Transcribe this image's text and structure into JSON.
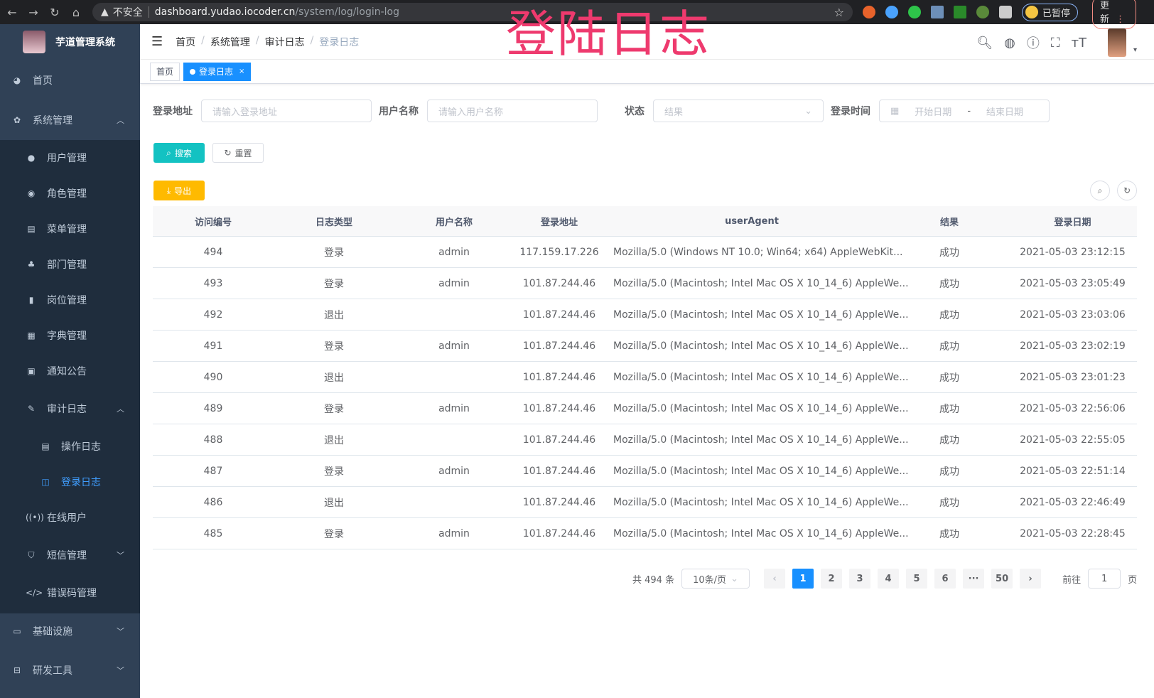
{
  "browser": {
    "insecure": "不安全",
    "host": "dashboard.yudao.iocoder.cn",
    "path": "/system/log/login-log",
    "paused": "已暂停",
    "update": "更新"
  },
  "overlay_title": "登陆日志",
  "sidebar": {
    "title": "芋道管理系统",
    "items": [
      {
        "label": "首页",
        "icon": "dashboard-icon"
      },
      {
        "label": "系统管理",
        "icon": "gear-icon"
      },
      {
        "label": "用户管理",
        "icon": "user-icon"
      },
      {
        "label": "角色管理",
        "icon": "peoples-icon"
      },
      {
        "label": "菜单管理",
        "icon": "tree-table-icon"
      },
      {
        "label": "部门管理",
        "icon": "tree-icon"
      },
      {
        "label": "岗位管理",
        "icon": "post-icon"
      },
      {
        "label": "字典管理",
        "icon": "dict-icon"
      },
      {
        "label": "通知公告",
        "icon": "message-icon"
      },
      {
        "label": "审计日志",
        "icon": "log-icon"
      },
      {
        "label": "操作日志",
        "icon": "form-icon"
      },
      {
        "label": "登录日志",
        "icon": "logininfor-icon"
      },
      {
        "label": "在线用户",
        "icon": "online-icon"
      },
      {
        "label": "短信管理",
        "icon": "shield-icon"
      },
      {
        "label": "错误码管理",
        "icon": "code-icon"
      },
      {
        "label": "基础设施",
        "icon": "monitor-icon"
      },
      {
        "label": "研发工具",
        "icon": "toolbox-icon"
      }
    ]
  },
  "breadcrumb": [
    "首页",
    "系统管理",
    "审计日志",
    "登录日志"
  ],
  "tags": [
    {
      "label": "首页"
    },
    {
      "label": "登录日志"
    }
  ],
  "filters": {
    "addr_label": "登录地址",
    "addr_ph": "请输入登录地址",
    "user_label": "用户名称",
    "user_ph": "请输入用户名称",
    "status_label": "状态",
    "status_ph": "结果",
    "time_label": "登录时间",
    "start_ph": "开始日期",
    "sep": "-",
    "end_ph": "结束日期"
  },
  "buttons": {
    "search": "搜索",
    "reset": "重置",
    "export": "导出"
  },
  "table": {
    "headers": [
      "访问编号",
      "日志类型",
      "用户名称",
      "登录地址",
      "userAgent",
      "结果",
      "登录日期"
    ],
    "rows": [
      [
        "494",
        "登录",
        "admin",
        "117.159.17.226",
        "Mozilla/5.0 (Windows NT 10.0; Win64; x64) AppleWebKit...",
        "成功",
        "2021-05-03 23:12:15"
      ],
      [
        "493",
        "登录",
        "admin",
        "101.87.244.46",
        "Mozilla/5.0 (Macintosh; Intel Mac OS X 10_14_6) AppleWe...",
        "成功",
        "2021-05-03 23:05:49"
      ],
      [
        "492",
        "退出",
        "",
        "101.87.244.46",
        "Mozilla/5.0 (Macintosh; Intel Mac OS X 10_14_6) AppleWe...",
        "成功",
        "2021-05-03 23:03:06"
      ],
      [
        "491",
        "登录",
        "admin",
        "101.87.244.46",
        "Mozilla/5.0 (Macintosh; Intel Mac OS X 10_14_6) AppleWe...",
        "成功",
        "2021-05-03 23:02:19"
      ],
      [
        "490",
        "退出",
        "",
        "101.87.244.46",
        "Mozilla/5.0 (Macintosh; Intel Mac OS X 10_14_6) AppleWe...",
        "成功",
        "2021-05-03 23:01:23"
      ],
      [
        "489",
        "登录",
        "admin",
        "101.87.244.46",
        "Mozilla/5.0 (Macintosh; Intel Mac OS X 10_14_6) AppleWe...",
        "成功",
        "2021-05-03 22:56:06"
      ],
      [
        "488",
        "退出",
        "",
        "101.87.244.46",
        "Mozilla/5.0 (Macintosh; Intel Mac OS X 10_14_6) AppleWe...",
        "成功",
        "2021-05-03 22:55:05"
      ],
      [
        "487",
        "登录",
        "admin",
        "101.87.244.46",
        "Mozilla/5.0 (Macintosh; Intel Mac OS X 10_14_6) AppleWe...",
        "成功",
        "2021-05-03 22:51:14"
      ],
      [
        "486",
        "退出",
        "",
        "101.87.244.46",
        "Mozilla/5.0 (Macintosh; Intel Mac OS X 10_14_6) AppleWe...",
        "成功",
        "2021-05-03 22:46:49"
      ],
      [
        "485",
        "登录",
        "admin",
        "101.87.244.46",
        "Mozilla/5.0 (Macintosh; Intel Mac OS X 10_14_6) AppleWe...",
        "成功",
        "2021-05-03 22:28:45"
      ]
    ]
  },
  "pagination": {
    "total": "共 494 条",
    "page_size": "10条/页",
    "pages": [
      "1",
      "2",
      "3",
      "4",
      "5",
      "6",
      "···",
      "50"
    ],
    "current": "1",
    "goto_label": "前往",
    "goto_value": "1",
    "goto_suffix": "页"
  },
  "colors": {
    "sidebar": "#304156",
    "submenu": "#1f2d3d",
    "primary": "#1890ff",
    "search": "#13c2c2",
    "export": "#ffba00",
    "overlay": "#ee3a6e"
  }
}
